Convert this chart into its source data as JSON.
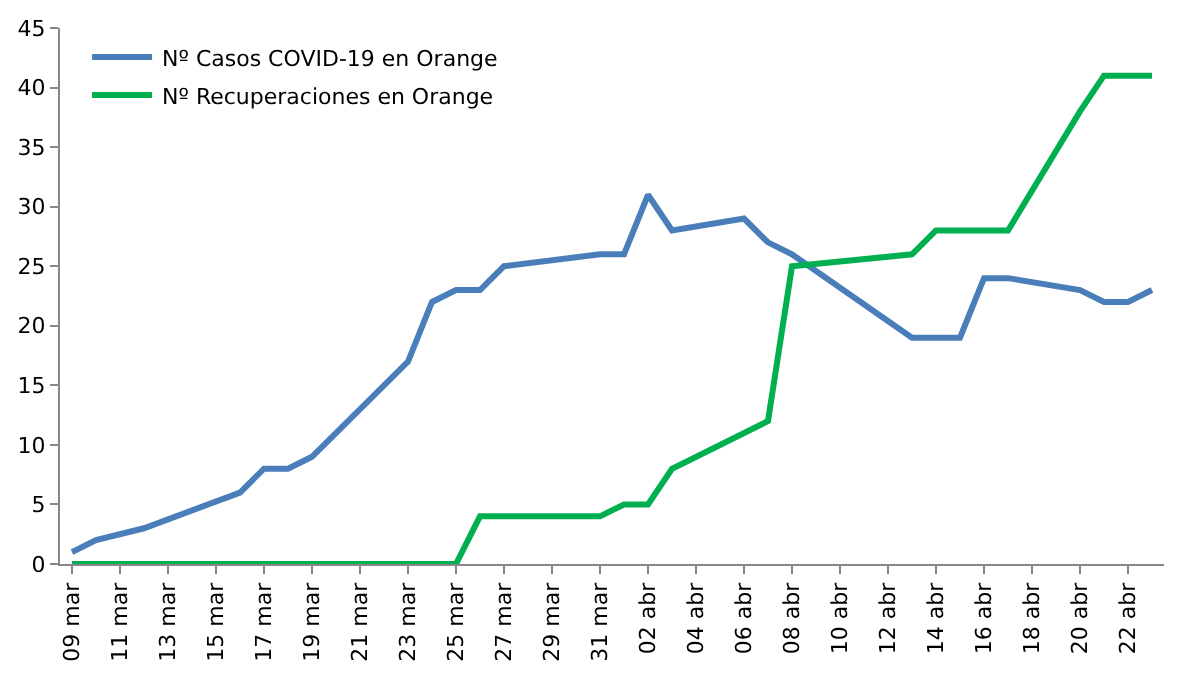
{
  "chart_data": {
    "type": "line",
    "legend": "top left",
    "grid": false,
    "marker": "none",
    "line_style": "solid",
    "xlim": [
      "--03-08T12:00",
      "--04-23T12:00"
    ],
    "xticks": [
      {
        "value": "--03-09",
        "label": "09 mar"
      },
      {
        "value": "--03-11",
        "label": "11 mar"
      },
      {
        "value": "--03-13",
        "label": "13 mar"
      },
      {
        "value": "--03-15",
        "label": "15 mar"
      },
      {
        "value": "--03-17",
        "label": "17 mar"
      },
      {
        "value": "--03-19",
        "label": "19 mar"
      },
      {
        "value": "--03-21",
        "label": "21 mar"
      },
      {
        "value": "--03-23",
        "label": "23 mar"
      },
      {
        "value": "--03-25",
        "label": "25 mar"
      },
      {
        "value": "--03-27",
        "label": "27 mar"
      },
      {
        "value": "--03-29",
        "label": "29 mar"
      },
      {
        "value": "--03-31",
        "label": "31 mar"
      },
      {
        "value": "--04-02",
        "label": "02 abr"
      },
      {
        "value": "--04-04",
        "label": "04 abr"
      },
      {
        "value": "--04-06",
        "label": "06 abr"
      },
      {
        "value": "--04-08",
        "label": "08 abr"
      },
      {
        "value": "--04-10",
        "label": "10 abr"
      },
      {
        "value": "--04-12",
        "label": "12 abr"
      },
      {
        "value": "--04-14",
        "label": "14 abr"
      },
      {
        "value": "--04-16",
        "label": "16 abr"
      },
      {
        "value": "--04-18",
        "label": "18 abr"
      },
      {
        "value": "--04-20",
        "label": "20 abr"
      },
      {
        "value": "--04-22",
        "label": "22 abr"
      }
    ],
    "ylim": [
      0,
      45
    ],
    "yticks": [
      0,
      5,
      10,
      15,
      20,
      25,
      30,
      35,
      40,
      45
    ],
    "series": [
      {
        "name": "Nº Casos COVID-19 en Orange",
        "color": "#4a7ebb",
        "x": [
          "--03-09",
          "--03-10",
          "--03-12",
          "--03-16",
          "--03-17",
          "--03-18",
          "--03-19",
          "--03-23",
          "--03-24",
          "--03-25",
          "--03-26",
          "--03-27",
          "--03-31",
          "--04-01",
          "--04-02",
          "--04-03",
          "--04-06",
          "--04-07",
          "--04-08",
          "--04-13",
          "--04-15",
          "--04-16",
          "--04-17",
          "--04-20",
          "--04-21",
          "--04-22",
          "--04-23"
        ],
        "values": [
          1,
          2,
          3,
          6,
          8,
          8,
          9,
          17,
          22,
          23,
          23,
          25,
          26,
          26,
          31,
          28,
          29,
          27,
          26,
          19,
          19,
          24,
          24,
          23,
          22,
          22,
          23
        ]
      },
      {
        "name": "Nº Recuperaciones en Orange",
        "color": "#00b050",
        "x": [
          "--03-09",
          "--03-25",
          "--03-26",
          "--03-31",
          "--04-01",
          "--04-02",
          "--04-03",
          "--04-07",
          "--04-08",
          "--04-13",
          "--04-14",
          "--04-17",
          "--04-20",
          "--04-21",
          "--04-23"
        ],
        "values": [
          0,
          0,
          4,
          4,
          5,
          5,
          8,
          12,
          25,
          26,
          28,
          28,
          38,
          41,
          41
        ]
      }
    ]
  }
}
